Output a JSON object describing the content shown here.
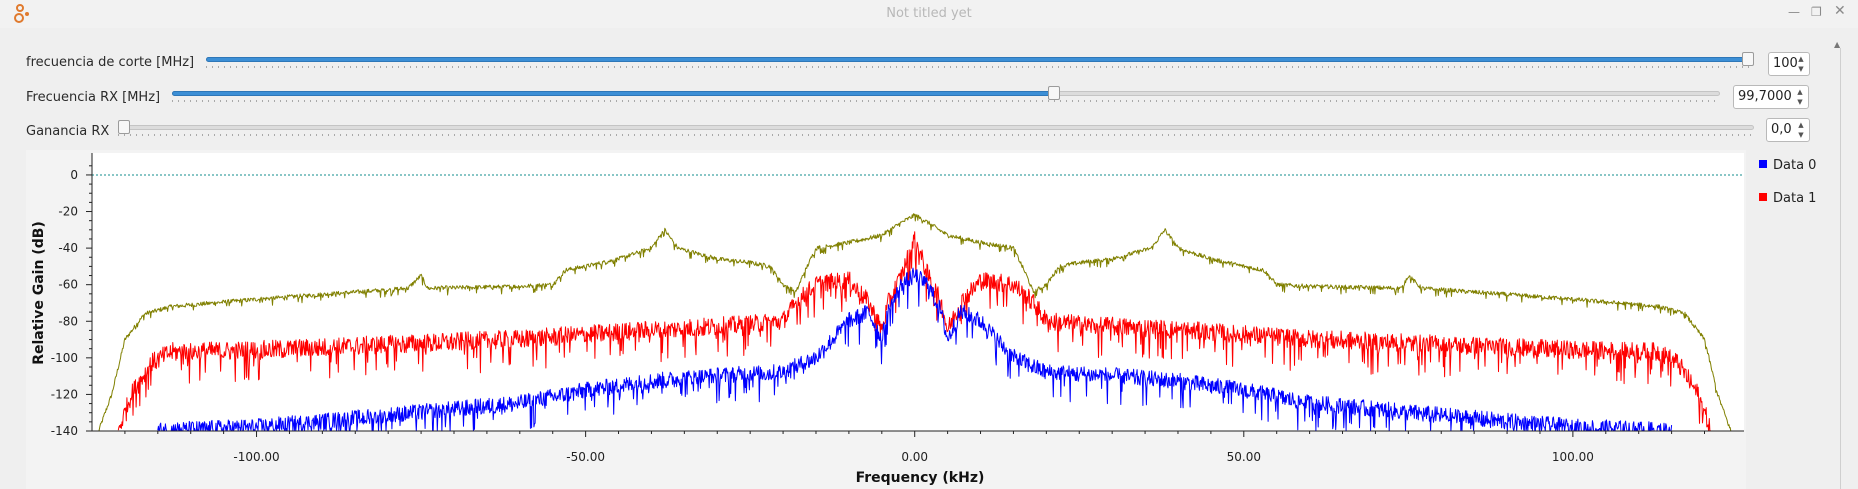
{
  "window": {
    "title": "Not titled yet"
  },
  "controls": [
    {
      "label": "frecuencia de corte [MHz]",
      "value": "100",
      "position": 1.0
    },
    {
      "label": "Frecuencia RX [MHz]",
      "value": "99,7000",
      "position": 0.57
    },
    {
      "label": "Ganancia RX",
      "value": "0,0",
      "position": 0.0
    }
  ],
  "legend": [
    {
      "name": "Data 0",
      "color": "#0000ff"
    },
    {
      "name": "Data 1",
      "color": "#ff0000"
    }
  ],
  "chart_data": {
    "type": "line",
    "xlabel": "Frequency (kHz)",
    "ylabel": "Relative Gain (dB)",
    "xlim": [
      -125,
      126
    ],
    "ylim": [
      -140,
      12
    ],
    "x_ticks": [
      -100,
      -50,
      0,
      50,
      100
    ],
    "x_tick_labels": [
      "-100.00",
      "-50.00",
      "0.00",
      "50.00",
      "100.00"
    ],
    "y_ticks": [
      0,
      -20,
      -40,
      -60,
      -80,
      -100,
      -120,
      -140
    ],
    "y_tick_labels": [
      "0",
      "-20",
      "-40",
      "-60",
      "-80",
      "-100",
      "-120",
      "-140"
    ],
    "grid": false,
    "legend_position": "right",
    "reference_line": {
      "y": 0,
      "color": "#138d8d",
      "style": "dotted"
    },
    "series": [
      {
        "name": "Data 0",
        "color": "#0000ff",
        "x": [
          -115,
          -100,
          -90,
          -75,
          -60,
          -50,
          -40,
          -30,
          -20,
          -15,
          -10,
          -7,
          -5,
          -4,
          -2,
          0,
          2,
          4,
          5,
          7,
          10,
          15,
          20,
          30,
          40,
          50,
          60,
          75,
          90,
          100,
          115
        ],
        "y": [
          -140,
          -138,
          -135,
          -130,
          -125,
          -118,
          -113,
          -110,
          -108,
          -100,
          -80,
          -75,
          -90,
          -75,
          -60,
          -55,
          -60,
          -75,
          -90,
          -75,
          -80,
          -100,
          -108,
          -110,
          -113,
          -118,
          -125,
          -130,
          -135,
          -138,
          -140
        ],
        "noise": 8
      },
      {
        "name": "Data 1",
        "color": "#ff0000",
        "x": [
          -121,
          -119,
          -116,
          -113,
          -100,
          -60,
          -40,
          -25,
          -20,
          -18,
          -15,
          -10,
          -7,
          -5,
          -4,
          -2,
          0,
          2,
          4,
          5,
          7,
          10,
          15,
          18,
          20,
          25,
          40,
          60,
          100,
          113,
          116,
          119,
          121
        ],
        "y": [
          -140,
          -120,
          -103,
          -97,
          -96,
          -90,
          -85,
          -82,
          -80,
          -70,
          -60,
          -58,
          -70,
          -85,
          -70,
          -55,
          -35,
          -55,
          -70,
          -85,
          -70,
          -58,
          -60,
          -70,
          -80,
          -82,
          -85,
          -90,
          -96,
          -97,
          -103,
          -120,
          -140
        ],
        "noise": 9
      },
      {
        "name": "",
        "color": "#808000",
        "x": [
          -124,
          -122,
          -120,
          -117,
          -113,
          -100,
          -77,
          -75,
          -74,
          -60,
          -55,
          -53,
          -50,
          -45,
          -40,
          -38,
          -36,
          -30,
          -25,
          -22,
          -21,
          -20,
          -18,
          -17,
          -15,
          -10,
          -5,
          -2,
          0,
          2,
          5,
          10,
          15,
          17,
          18,
          20,
          21,
          22,
          25,
          30,
          36,
          38,
          40,
          45,
          50,
          53,
          55,
          60,
          74,
          75,
          77,
          100,
          113,
          117,
          120,
          122,
          124
        ],
        "y": [
          -140,
          -120,
          -90,
          -76,
          -72,
          -68,
          -62,
          -55,
          -62,
          -61,
          -60,
          -52,
          -50,
          -46,
          -40,
          -30,
          -40,
          -46,
          -48,
          -50,
          -55,
          -60,
          -64,
          -55,
          -40,
          -37,
          -33,
          -26,
          -22,
          -26,
          -33,
          -37,
          -40,
          -55,
          -64,
          -60,
          -55,
          -50,
          -48,
          -46,
          -40,
          -30,
          -40,
          -46,
          -50,
          -52,
          -60,
          -61,
          -62,
          -55,
          -62,
          -68,
          -72,
          -76,
          -90,
          -120,
          -140
        ],
        "noise": 2
      }
    ]
  }
}
